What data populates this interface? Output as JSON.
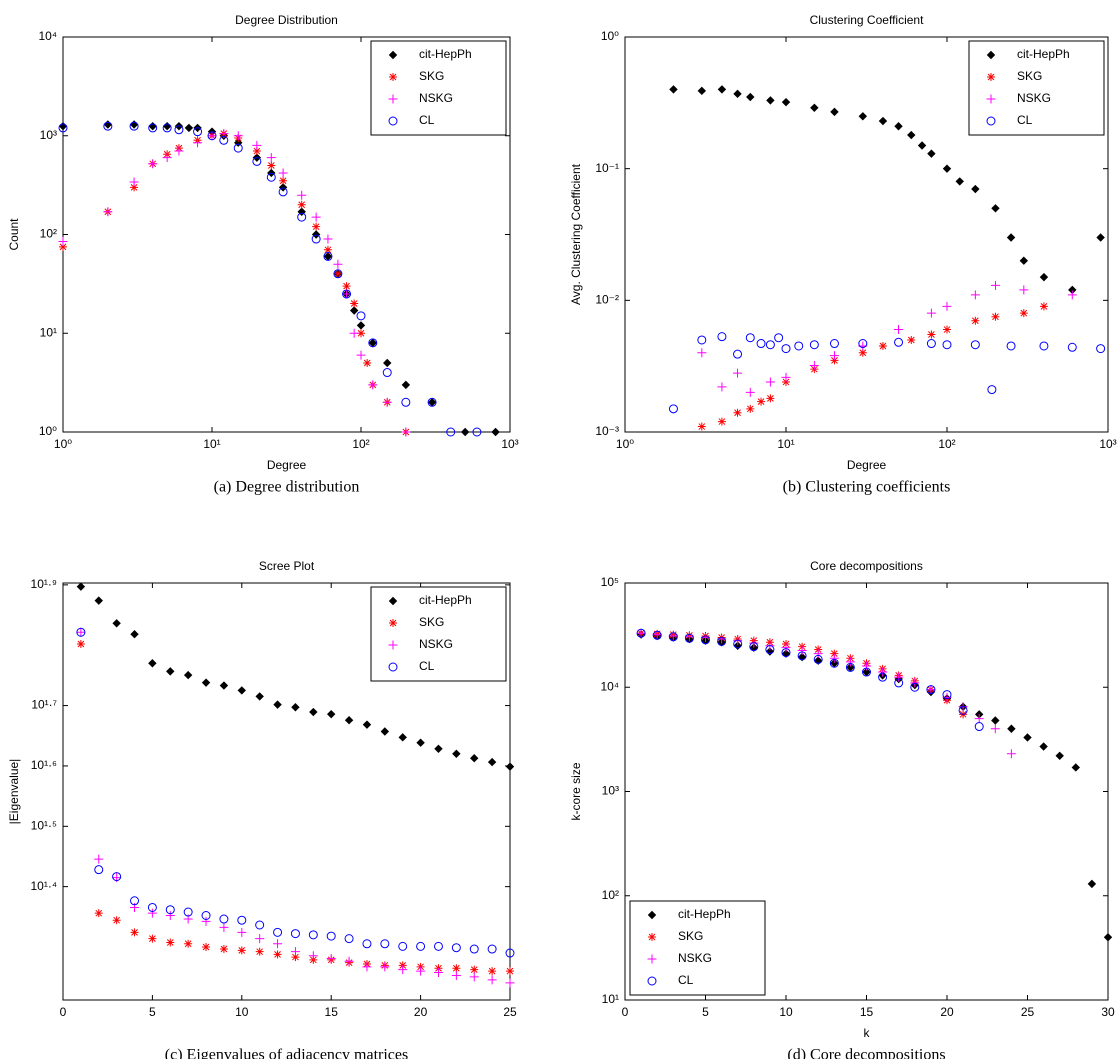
{
  "chart_data": [
    {
      "type": "scatter",
      "title": "Degree Distribution",
      "xlabel": "Degree",
      "ylabel": "Count",
      "caption": "(a) Degree distribution",
      "xlog": true,
      "ylog": true,
      "xlim": [
        1,
        1000
      ],
      "ylim": [
        1,
        10000
      ],
      "xticks": [
        {
          "value": 1,
          "label": "10⁰"
        },
        {
          "value": 10,
          "label": "10¹"
        },
        {
          "value": 100,
          "label": "10²"
        },
        {
          "value": 1000,
          "label": "10³"
        }
      ],
      "yticks": [
        {
          "value": 1,
          "label": "10⁰"
        },
        {
          "value": 10,
          "label": "10¹"
        },
        {
          "value": 100,
          "label": "10²"
        },
        {
          "value": 1000,
          "label": "10³"
        },
        {
          "value": 10000,
          "label": "10⁴"
        }
      ],
      "legend": "upper right",
      "series": [
        {
          "name": "cit-HepPh",
          "color": "#000000",
          "marker": "diamond",
          "x": [
            1,
            2,
            3,
            4,
            5,
            6,
            7,
            8,
            10,
            12,
            15,
            20,
            25,
            30,
            40,
            50,
            60,
            70,
            80,
            90,
            100,
            120,
            150,
            200,
            300,
            500,
            800
          ],
          "values": [
            1250,
            1300,
            1300,
            1250,
            1250,
            1250,
            1200,
            1200,
            1100,
            1000,
            850,
            600,
            420,
            300,
            170,
            100,
            60,
            40,
            25,
            17,
            12,
            8,
            5,
            3,
            2,
            1,
            1
          ]
        },
        {
          "name": "SKG",
          "color": "#ff0000",
          "marker": "asterisk",
          "x": [
            1,
            2,
            3,
            4,
            5,
            6,
            8,
            10,
            12,
            15,
            20,
            25,
            30,
            40,
            50,
            60,
            70,
            80,
            90,
            100,
            110,
            120,
            150,
            200
          ],
          "values": [
            75,
            170,
            300,
            520,
            650,
            750,
            900,
            1000,
            1050,
            950,
            700,
            500,
            350,
            200,
            120,
            70,
            40,
            30,
            20,
            10,
            5,
            3,
            2,
            1
          ]
        },
        {
          "name": "NSKG",
          "color": "#ff00ff",
          "marker": "plus",
          "x": [
            1,
            2,
            3,
            4,
            5,
            6,
            8,
            10,
            12,
            15,
            20,
            25,
            30,
            40,
            50,
            60,
            70,
            80,
            90,
            100,
            120,
            150,
            200
          ],
          "values": [
            85,
            170,
            340,
            520,
            600,
            700,
            850,
            1000,
            1050,
            1000,
            800,
            600,
            420,
            250,
            150,
            90,
            50,
            25,
            10,
            6,
            3,
            2,
            1
          ]
        },
        {
          "name": "CL",
          "color": "#0000ff",
          "marker": "circle",
          "x": [
            1,
            2,
            3,
            4,
            5,
            6,
            8,
            10,
            12,
            15,
            20,
            25,
            30,
            40,
            50,
            60,
            70,
            80,
            100,
            120,
            150,
            200,
            300,
            400,
            600
          ],
          "values": [
            1200,
            1250,
            1250,
            1200,
            1200,
            1150,
            1100,
            1000,
            900,
            750,
            550,
            380,
            270,
            150,
            90,
            60,
            40,
            25,
            15,
            8,
            4,
            2,
            2,
            1,
            1
          ]
        }
      ]
    },
    {
      "type": "scatter",
      "title": "Clustering Coefficient",
      "xlabel": "Degree",
      "ylabel": "Avg. Clustering Coefficient",
      "caption": "(b) Clustering coefficients",
      "xlog": true,
      "ylog": true,
      "xlim": [
        1,
        1000
      ],
      "ylim": [
        0.001,
        1
      ],
      "xticks": [
        {
          "value": 1,
          "label": "10⁰"
        },
        {
          "value": 10,
          "label": "10¹"
        },
        {
          "value": 100,
          "label": "10²"
        },
        {
          "value": 1000,
          "label": "10³"
        }
      ],
      "yticks": [
        {
          "value": 0.001,
          "label": "10⁻³"
        },
        {
          "value": 0.01,
          "label": "10⁻²"
        },
        {
          "value": 0.1,
          "label": "10⁻¹"
        },
        {
          "value": 1,
          "label": "10⁰"
        }
      ],
      "legend": "upper right",
      "series": [
        {
          "name": "cit-HepPh",
          "color": "#000000",
          "marker": "diamond",
          "x": [
            2,
            3,
            4,
            5,
            6,
            8,
            10,
            15,
            20,
            30,
            40,
            50,
            60,
            70,
            80,
            100,
            120,
            150,
            200,
            250,
            300,
            400,
            600,
            900
          ],
          "values": [
            0.4,
            0.39,
            0.4,
            0.37,
            0.35,
            0.33,
            0.32,
            0.29,
            0.27,
            0.25,
            0.23,
            0.21,
            0.18,
            0.15,
            0.13,
            0.1,
            0.08,
            0.07,
            0.05,
            0.03,
            0.02,
            0.015,
            0.012,
            0.03
          ]
        },
        {
          "name": "SKG",
          "color": "#ff0000",
          "marker": "asterisk",
          "x": [
            3,
            4,
            5,
            6,
            7,
            8,
            10,
            15,
            20,
            30,
            40,
            60,
            80,
            100,
            150,
            200,
            300,
            400
          ],
          "values": [
            0.0011,
            0.0012,
            0.0014,
            0.0015,
            0.0017,
            0.0018,
            0.0024,
            0.003,
            0.0035,
            0.004,
            0.0045,
            0.005,
            0.0055,
            0.006,
            0.007,
            0.0075,
            0.008,
            0.009
          ]
        },
        {
          "name": "NSKG",
          "color": "#ff00ff",
          "marker": "plus",
          "x": [
            3,
            4,
            5,
            6,
            8,
            10,
            15,
            20,
            30,
            50,
            80,
            100,
            150,
            200,
            300,
            600
          ],
          "values": [
            0.004,
            0.0022,
            0.0028,
            0.002,
            0.0024,
            0.0026,
            0.0032,
            0.0038,
            0.0045,
            0.006,
            0.008,
            0.009,
            0.011,
            0.013,
            0.012,
            0.011
          ]
        },
        {
          "name": "CL",
          "color": "#0000ff",
          "marker": "circle",
          "x": [
            2,
            3,
            4,
            5,
            6,
            7,
            8,
            9,
            10,
            12,
            15,
            20,
            30,
            50,
            80,
            100,
            150,
            190,
            250,
            400,
            600,
            900
          ],
          "values": [
            0.0015,
            0.005,
            0.0053,
            0.0039,
            0.0052,
            0.0047,
            0.0046,
            0.0052,
            0.0043,
            0.0045,
            0.0046,
            0.0047,
            0.0047,
            0.0048,
            0.0047,
            0.0046,
            0.0046,
            0.0021,
            0.0045,
            0.0045,
            0.0044,
            0.0043
          ]
        }
      ]
    },
    {
      "type": "scatter",
      "title": "Scree Plot",
      "ylabel": "|Eigenvalue|",
      "caption": "(c) Eigenvalues of adjacency matrices",
      "xlog": false,
      "ylog": true,
      "xlim": [
        0,
        25
      ],
      "ylim": [
        16.3,
        80
      ],
      "xticks": [
        0,
        5,
        10,
        15,
        20,
        25
      ],
      "yticks": [
        {
          "value": 25.12,
          "label": "10¹·⁴"
        },
        {
          "value": 31.62,
          "label": "10¹·⁵"
        },
        {
          "value": 39.81,
          "label": "10¹·⁶"
        },
        {
          "value": 50.12,
          "label": "10¹·⁷"
        },
        {
          "value": 79.43,
          "label": "10¹·⁹"
        }
      ],
      "legend": "upper right",
      "series": [
        {
          "name": "cit-HepPh",
          "color": "#000000",
          "marker": "diamond",
          "x": [
            1,
            2,
            3,
            4,
            5,
            6,
            7,
            8,
            9,
            10,
            11,
            12,
            13,
            14,
            15,
            16,
            17,
            18,
            19,
            20,
            21,
            22,
            23,
            24,
            25
          ],
          "values": [
            78.9,
            74.8,
            68.6,
            65.8,
            58.9,
            57.1,
            56.3,
            54.7,
            54.1,
            53.1,
            51.9,
            50.3,
            49.8,
            48.9,
            48.5,
            47.4,
            46.6,
            45.4,
            44.4,
            43.5,
            42.5,
            41.7,
            41.0,
            40.4,
            39.7
          ]
        },
        {
          "name": "SKG",
          "color": "#ff0000",
          "marker": "asterisk",
          "x": [
            1,
            2,
            3,
            4,
            5,
            6,
            7,
            8,
            9,
            10,
            11,
            12,
            13,
            14,
            15,
            16,
            17,
            18,
            19,
            20,
            21,
            22,
            23,
            24,
            25
          ],
          "values": [
            63.4,
            22.7,
            22.1,
            21.1,
            20.6,
            20.3,
            20.2,
            19.95,
            19.8,
            19.7,
            19.6,
            19.4,
            19.2,
            19.0,
            19.0,
            18.8,
            18.7,
            18.6,
            18.6,
            18.5,
            18.4,
            18.4,
            18.3,
            18.2,
            18.2
          ]
        },
        {
          "name": "NSKG",
          "color": "#ff00ff",
          "marker": "plus",
          "x": [
            1,
            2,
            3,
            4,
            5,
            6,
            7,
            8,
            9,
            10,
            11,
            12,
            13,
            14,
            15,
            16,
            17,
            18,
            19,
            20,
            21,
            22,
            23,
            24,
            25
          ],
          "values": [
            66.3,
            27.9,
            26.0,
            23.2,
            22.7,
            22.5,
            22.2,
            22.0,
            21.5,
            21.1,
            20.6,
            20.2,
            19.6,
            19.3,
            19.1,
            18.9,
            18.5,
            18.5,
            18.3,
            18.2,
            18.1,
            17.9,
            17.8,
            17.6,
            17.4
          ]
        },
        {
          "name": "CL",
          "color": "#0000ff",
          "marker": "circle",
          "x": [
            1,
            2,
            3,
            4,
            5,
            6,
            7,
            8,
            9,
            10,
            11,
            12,
            13,
            14,
            15,
            16,
            17,
            18,
            19,
            20,
            21,
            22,
            23,
            24,
            25
          ],
          "values": [
            66.3,
            26.8,
            26.1,
            23.8,
            23.2,
            23.0,
            22.8,
            22.5,
            22.2,
            22.1,
            21.7,
            21.1,
            21.0,
            20.9,
            20.8,
            20.6,
            20.2,
            20.2,
            20.0,
            20.0,
            20.0,
            19.9,
            19.8,
            19.8,
            19.5
          ]
        }
      ]
    },
    {
      "type": "scatter",
      "title": "Core decompositions",
      "xlabel": "k",
      "ylabel": "k-core size",
      "caption": "(d) Core decompositions",
      "xlog": false,
      "ylog": true,
      "xlim": [
        0,
        30
      ],
      "ylim": [
        10,
        100000
      ],
      "xticks": [
        0,
        5,
        10,
        15,
        20,
        25,
        30
      ],
      "yticks": [
        {
          "value": 10,
          "label": "10¹"
        },
        {
          "value": 100,
          "label": "10²"
        },
        {
          "value": 1000,
          "label": "10³"
        },
        {
          "value": 10000,
          "label": "10⁴"
        },
        {
          "value": 100000,
          "label": "10⁵"
        }
      ],
      "legend": "lower left",
      "series": [
        {
          "name": "cit-HepPh",
          "color": "#000000",
          "marker": "diamond",
          "x": [
            1,
            2,
            3,
            4,
            5,
            6,
            7,
            8,
            9,
            10,
            11,
            12,
            13,
            14,
            15,
            16,
            17,
            18,
            19,
            20,
            21,
            22,
            23,
            24,
            25,
            26,
            27,
            28,
            29,
            30
          ],
          "values": [
            32000,
            31000,
            30000,
            29000,
            28000,
            27000,
            25000,
            24000,
            22000,
            21000,
            19500,
            18000,
            17000,
            15500,
            14000,
            13000,
            12000,
            10500,
            9000,
            7800,
            6500,
            5500,
            4800,
            4000,
            3300,
            2700,
            2200,
            1700,
            130,
            40
          ]
        },
        {
          "name": "SKG",
          "color": "#ff0000",
          "marker": "asterisk",
          "x": [
            1,
            2,
            3,
            4,
            5,
            6,
            7,
            8,
            9,
            10,
            11,
            12,
            13,
            14,
            15,
            16,
            17,
            18,
            19,
            20,
            21
          ],
          "values": [
            33000,
            32500,
            32000,
            31500,
            31000,
            30000,
            29000,
            28000,
            27000,
            26000,
            24500,
            23000,
            21000,
            19000,
            17000,
            15000,
            13000,
            11500,
            9500,
            7500,
            5500
          ]
        },
        {
          "name": "NSKG",
          "color": "#ff00ff",
          "marker": "plus",
          "x": [
            1,
            2,
            3,
            4,
            5,
            6,
            7,
            8,
            9,
            10,
            11,
            12,
            13,
            14,
            15,
            16,
            17,
            18,
            19,
            20,
            21,
            22,
            23,
            24
          ],
          "values": [
            33000,
            32000,
            31000,
            30500,
            30000,
            29000,
            28000,
            26500,
            25000,
            24000,
            22500,
            21000,
            19000,
            17500,
            16000,
            14000,
            12500,
            11000,
            9500,
            8000,
            6500,
            5000,
            4000,
            2300
          ]
        },
        {
          "name": "CL",
          "color": "#0000ff",
          "marker": "circle",
          "x": [
            1,
            2,
            3,
            4,
            5,
            6,
            7,
            8,
            9,
            10,
            11,
            12,
            13,
            14,
            15,
            16,
            17,
            18,
            19,
            20,
            21,
            22
          ],
          "values": [
            33000,
            31500,
            30500,
            29500,
            28500,
            27500,
            26000,
            24500,
            23000,
            21500,
            20000,
            18500,
            17000,
            15500,
            14000,
            12500,
            11000,
            10000,
            9500,
            8500,
            6000,
            4200
          ]
        }
      ]
    }
  ]
}
